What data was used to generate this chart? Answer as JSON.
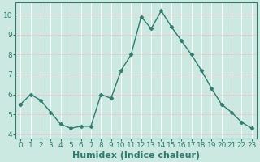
{
  "x": [
    0,
    1,
    2,
    3,
    4,
    5,
    6,
    7,
    8,
    9,
    10,
    11,
    12,
    13,
    14,
    15,
    16,
    17,
    18,
    19,
    20,
    21,
    22,
    23
  ],
  "y": [
    5.5,
    6.0,
    5.7,
    5.1,
    4.5,
    4.3,
    4.4,
    4.4,
    6.0,
    5.8,
    7.2,
    8.0,
    9.9,
    9.3,
    10.2,
    9.4,
    8.7,
    8.0,
    7.2,
    6.3,
    5.5,
    5.1,
    4.6,
    4.3
  ],
  "line_color": "#2d7d6e",
  "marker": "D",
  "bg_color": "#cce9e1",
  "plot_bg_color": "#cce9e1",
  "grid_color_major": "#f0c8c8",
  "grid_color_minor": "#ffffff",
  "xlabel": "Humidex (Indice chaleur)",
  "ylim": [
    3.8,
    10.6
  ],
  "xlim": [
    -0.5,
    23.5
  ],
  "yticks": [
    4,
    5,
    6,
    7,
    8,
    9,
    10
  ],
  "xticks": [
    0,
    1,
    2,
    3,
    4,
    5,
    6,
    7,
    8,
    9,
    10,
    11,
    12,
    13,
    14,
    15,
    16,
    17,
    18,
    19,
    20,
    21,
    22,
    23
  ],
  "tick_label_fontsize": 6.5,
  "xlabel_fontsize": 8,
  "line_width": 1.0,
  "marker_size": 2.5
}
